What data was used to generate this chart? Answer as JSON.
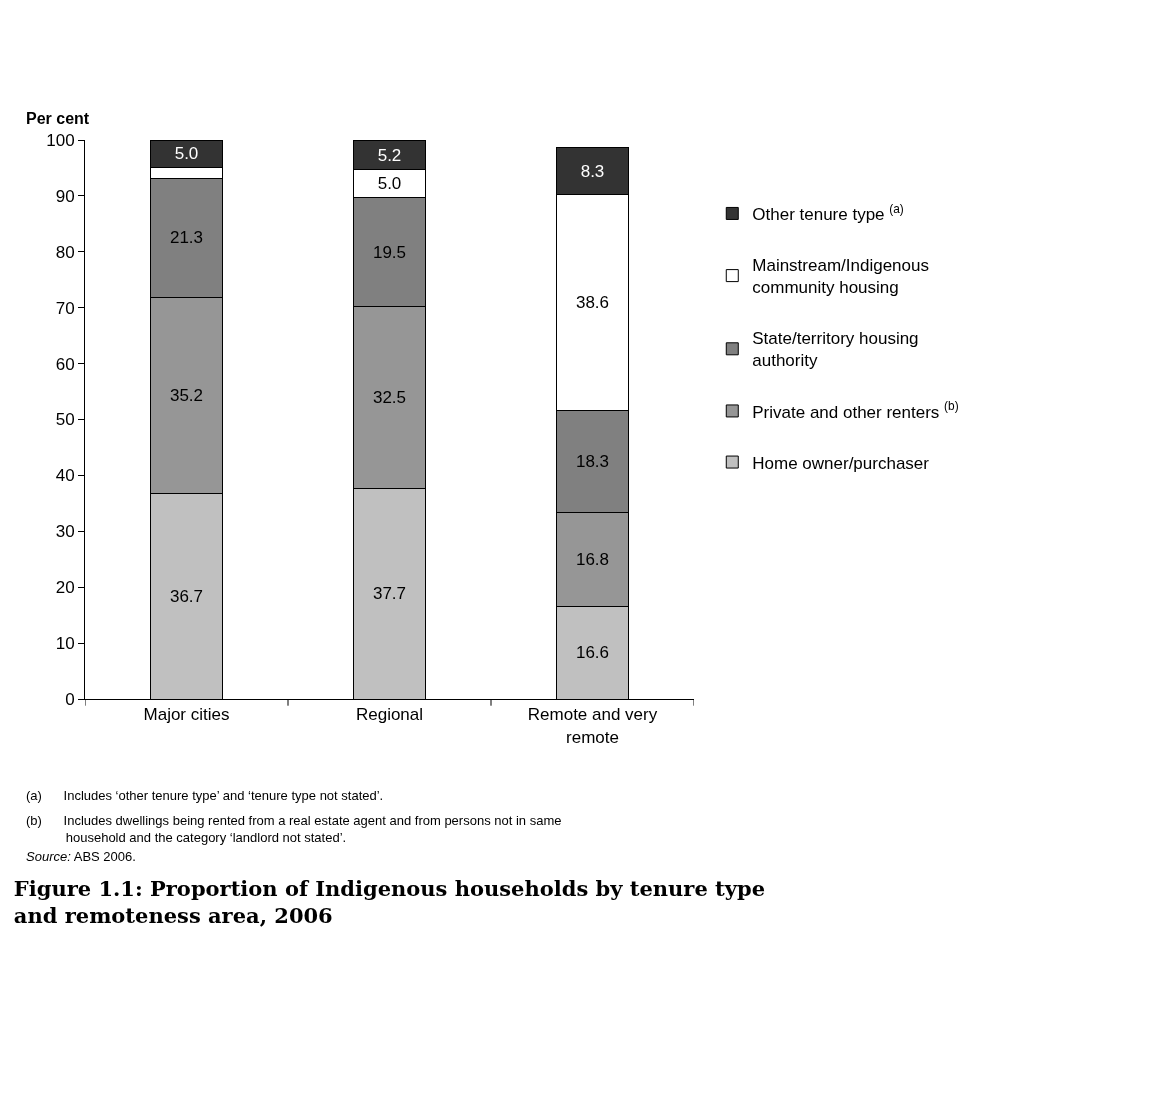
{
  "chart_data": {
    "type": "bar",
    "stacked": true,
    "title": "Figure 1.1: Proportion of Indigenous households by tenure type\nand remoteness area, 2006",
    "ylabel": "Per cent",
    "categories": [
      "Major cities",
      "Regional",
      "Remote and very\nremote"
    ],
    "series": [
      {
        "name": "Home owner/purchaser",
        "color": "#c0c0c0",
        "values": [
          36.7,
          37.7,
          16.6
        ],
        "value_labels": [
          "36.7",
          "37.7",
          "16.6"
        ]
      },
      {
        "name": "Private and other renters $^{(b)}$",
        "color": "#969696",
        "values": [
          35.2,
          32.5,
          16.8
        ],
        "value_labels": [
          "35.2",
          "32.5",
          "16.8"
        ]
      },
      {
        "name": "State/territory housing\nauthority",
        "color": "#808080",
        "values": [
          21.3,
          19.5,
          18.3
        ],
        "value_labels": [
          "21.3",
          "19.5",
          "18.3"
        ]
      },
      {
        "name": "Mainstream/Indigenous\ncommunity housing",
        "color": "#ffffff",
        "values": [
          1.8,
          5.0,
          38.6
        ],
        "value_labels": [
          null,
          "5.0",
          "38.6"
        ]
      },
      {
        "name": "Other tenure type $^{(a)}$",
        "color": "#333333",
        "values": [
          5.0,
          5.2,
          8.3
        ],
        "value_labels": [
          "5.0",
          "5.2",
          "8.3"
        ]
      }
    ],
    "ylim": [
      0,
      100
    ],
    "yticks": [
      0,
      10,
      20,
      30,
      40,
      50,
      60,
      70,
      80,
      90,
      100
    ],
    "grid": false,
    "legend": "right",
    "annotations": [
      "(a)      Includes ‘other tenure type’ and ‘tenure type not stated’.",
      "(b)      Includes dwellings being rented from a real estate agent and from persons not in same\n           household and the category ‘landlord not stated’.",
      "Source: ABS 2006."
    ]
  }
}
